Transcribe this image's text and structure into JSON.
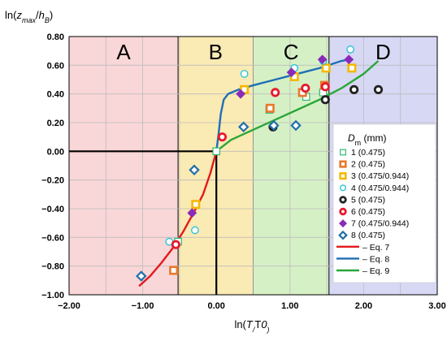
{
  "chart_data": {
    "type": "scatter",
    "ylabel_parts": [
      "ln(",
      "z",
      "max",
      "/",
      "h",
      "B",
      ")"
    ],
    "xlabel_parts": [
      "ln(",
      "T",
      "/",
      "T",
      "0",
      ")"
    ],
    "xlim": [
      -2.0,
      3.0
    ],
    "ylim": [
      -1.0,
      0.8
    ],
    "x_ticks": [
      "−2.00",
      "−1.00",
      "0.00",
      "1.00",
      "2.00",
      "3.00"
    ],
    "x_tick_values": [
      -2,
      -1,
      0,
      1,
      2,
      3
    ],
    "y_ticks": [
      "0.80",
      "0.60",
      "0.40",
      "0.20",
      "0.00",
      "−0.20",
      "−0.40",
      "−0.60",
      "−0.80",
      "−1.00"
    ],
    "y_tick_values": [
      0.8,
      0.6,
      0.4,
      0.2,
      0.0,
      -0.2,
      -0.4,
      -0.6,
      -0.8,
      -1.0
    ],
    "grid": true,
    "regions": [
      {
        "label": "A",
        "x0": -2.0,
        "x1": -0.52,
        "color": "#f9d6d8"
      },
      {
        "label": "B",
        "x0": -0.52,
        "x1": 0.5,
        "color": "#faeab3"
      },
      {
        "label": "C",
        "x0": 0.5,
        "x1": 1.53,
        "color": "#d6f0c6"
      },
      {
        "label": "D",
        "x0": 1.53,
        "x1": 3.0,
        "color": "#d7d8f4"
      }
    ],
    "reference_lines": [
      {
        "points": [
          [
            -2.0,
            0.0
          ],
          [
            0.0,
            0.0
          ],
          [
            0.0,
            -1.0
          ]
        ],
        "color": "#000000"
      }
    ],
    "legend": {
      "title_parts": [
        "D",
        "m",
        " (mm)"
      ],
      "placement": "right"
    },
    "series": [
      {
        "name": "1 (0.475)",
        "marker": "square-open",
        "color": "#2eb872",
        "points": [
          [
            -0.52,
            -0.63
          ],
          [
            0.0,
            0.0
          ],
          [
            0.72,
            0.29
          ],
          [
            1.22,
            0.38
          ],
          [
            1.45,
            0.41
          ]
        ]
      },
      {
        "name": "2 (0.475)",
        "marker": "square-open-thick",
        "color": "#e8792b",
        "points": [
          [
            -0.58,
            -0.83
          ],
          [
            0.73,
            0.3
          ],
          [
            1.17,
            0.41
          ],
          [
            1.47,
            0.46
          ]
        ]
      },
      {
        "name": "3 (0.475/0.944)",
        "marker": "square-open-thick",
        "color": "#f5b800",
        "points": [
          [
            -0.28,
            -0.37
          ],
          [
            0.38,
            0.43
          ],
          [
            1.06,
            0.52
          ],
          [
            1.49,
            0.58
          ],
          [
            1.84,
            0.58
          ]
        ]
      },
      {
        "name": "4 (0.475/0.944)",
        "marker": "circle-open",
        "color": "#22c1d6",
        "points": [
          [
            -0.64,
            -0.63
          ],
          [
            -0.29,
            -0.55
          ],
          [
            0.38,
            0.54
          ],
          [
            1.06,
            0.58
          ],
          [
            1.45,
            0.63
          ],
          [
            1.82,
            0.71
          ]
        ]
      },
      {
        "name": "5 (0.475)",
        "marker": "circle-open-thick",
        "color": "#222222",
        "points": [
          [
            0.77,
            0.17
          ],
          [
            1.48,
            0.36
          ],
          [
            1.87,
            0.43
          ],
          [
            2.2,
            0.43
          ]
        ]
      },
      {
        "name": "6 (0.475)",
        "marker": "circle-open-thick",
        "color": "#e8192c",
        "points": [
          [
            -0.55,
            -0.65
          ],
          [
            0.08,
            0.1
          ],
          [
            0.8,
            0.41
          ],
          [
            1.21,
            0.44
          ],
          [
            1.48,
            0.45
          ]
        ]
      },
      {
        "name": "7 (0.475/0.944)",
        "marker": "diamond",
        "color": "#8a2bb8",
        "points": [
          [
            -0.33,
            -0.43
          ],
          [
            0.33,
            0.4
          ],
          [
            1.02,
            0.55
          ],
          [
            1.44,
            0.64
          ],
          [
            1.8,
            0.64
          ]
        ]
      },
      {
        "name": "8 (0.475)",
        "marker": "diamond-open",
        "color": "#1f6fa8",
        "points": [
          [
            -1.02,
            -0.87
          ],
          [
            -0.3,
            -0.13
          ],
          [
            0.37,
            0.17
          ],
          [
            0.78,
            0.18
          ],
          [
            1.08,
            0.18
          ]
        ]
      }
    ],
    "curves": [
      {
        "name": "– Eq. 7",
        "color": "#e31a1c",
        "points": [
          [
            -1.05,
            -0.94
          ],
          [
            -0.9,
            -0.87
          ],
          [
            -0.75,
            -0.78
          ],
          [
            -0.6,
            -0.68
          ],
          [
            -0.45,
            -0.56
          ],
          [
            -0.3,
            -0.42
          ],
          [
            -0.18,
            -0.3
          ],
          [
            -0.08,
            -0.15
          ],
          [
            0.0,
            0.0
          ]
        ]
      },
      {
        "name": "– Eq. 8",
        "color": "#1f6fb5",
        "points": [
          [
            0.0,
            0.0
          ],
          [
            0.03,
            0.12
          ],
          [
            0.06,
            0.26
          ],
          [
            0.1,
            0.36
          ],
          [
            0.16,
            0.4
          ],
          [
            0.3,
            0.43
          ],
          [
            0.5,
            0.46
          ],
          [
            0.8,
            0.5
          ],
          [
            1.1,
            0.54
          ],
          [
            1.4,
            0.58
          ],
          [
            1.7,
            0.63
          ],
          [
            1.8,
            0.64
          ]
        ]
      },
      {
        "name": "– Eq. 9",
        "color": "#2aa63a",
        "points": [
          [
            0.0,
            0.0
          ],
          [
            0.2,
            0.08
          ],
          [
            0.5,
            0.15
          ],
          [
            0.8,
            0.22
          ],
          [
            1.1,
            0.29
          ],
          [
            1.4,
            0.36
          ],
          [
            1.7,
            0.44
          ],
          [
            2.0,
            0.54
          ],
          [
            2.2,
            0.63
          ]
        ]
      }
    ]
  }
}
